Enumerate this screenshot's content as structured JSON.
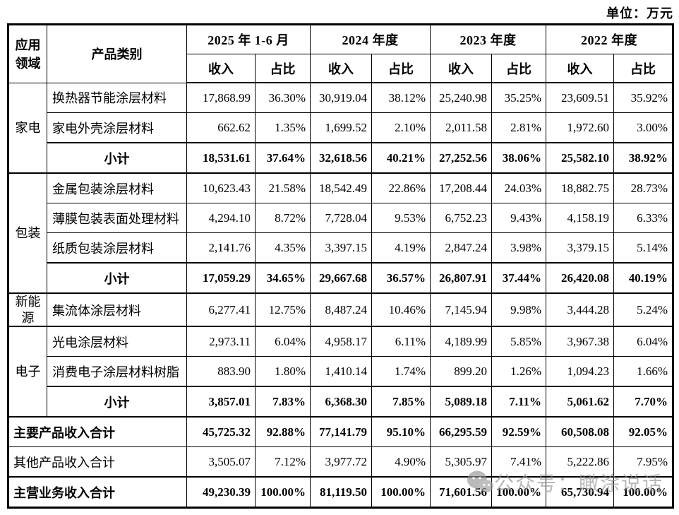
{
  "unit_label": "单位：万元",
  "header": {
    "area": "应用领域",
    "category": "产品类别",
    "periods": [
      "2025 年 1-6 月",
      "2024 年度",
      "2023 年度",
      "2022 年度"
    ],
    "revenue": "收入",
    "share": "占比"
  },
  "sections": [
    {
      "area": "家电",
      "rows": [
        {
          "label": "换热器节能涂层材料",
          "subtotal": false,
          "values": [
            "17,868.99",
            "36.30%",
            "30,919.04",
            "38.12%",
            "25,240.98",
            "35.25%",
            "23,609.51",
            "35.92%"
          ]
        },
        {
          "label": "家电外壳涂层材料",
          "subtotal": false,
          "values": [
            "662.62",
            "1.35%",
            "1,699.52",
            "2.10%",
            "2,011.58",
            "2.81%",
            "1,972.60",
            "3.00%"
          ]
        },
        {
          "label": "小计",
          "subtotal": true,
          "values": [
            "18,531.61",
            "37.64%",
            "32,618.56",
            "40.21%",
            "27,252.56",
            "38.06%",
            "25,582.10",
            "38.92%"
          ]
        }
      ]
    },
    {
      "area": "包装",
      "rows": [
        {
          "label": "金属包装涂层材料",
          "subtotal": false,
          "values": [
            "10,623.43",
            "21.58%",
            "18,542.49",
            "22.86%",
            "17,208.44",
            "24.03%",
            "18,882.75",
            "28.73%"
          ]
        },
        {
          "label": "薄膜包装表面处理材料",
          "subtotal": false,
          "values": [
            "4,294.10",
            "8.72%",
            "7,728.04",
            "9.53%",
            "6,752.23",
            "9.43%",
            "4,158.19",
            "6.33%"
          ]
        },
        {
          "label": "纸质包装涂层材料",
          "subtotal": false,
          "values": [
            "2,141.76",
            "4.35%",
            "3,397.15",
            "4.19%",
            "2,847.24",
            "3.98%",
            "3,379.15",
            "5.14%"
          ]
        },
        {
          "label": "小计",
          "subtotal": true,
          "values": [
            "17,059.29",
            "34.65%",
            "29,667.68",
            "36.57%",
            "26,807.91",
            "37.44%",
            "26,420.08",
            "40.19%"
          ]
        }
      ]
    },
    {
      "area": "新能源",
      "rows": [
        {
          "label": "集流体涂层材料",
          "subtotal": false,
          "values": [
            "6,277.41",
            "12.75%",
            "8,487.24",
            "10.46%",
            "7,145.94",
            "9.98%",
            "3,444.28",
            "5.24%"
          ]
        }
      ]
    },
    {
      "area": "电子",
      "rows": [
        {
          "label": "光电涂层材料",
          "subtotal": false,
          "values": [
            "2,973.11",
            "6.04%",
            "4,958.17",
            "6.11%",
            "4,189.99",
            "5.85%",
            "3,967.38",
            "6.04%"
          ]
        },
        {
          "label": "消费电子涂层材料树脂",
          "subtotal": false,
          "values": [
            "883.90",
            "1.80%",
            "1,410.14",
            "1.74%",
            "899.20",
            "1.26%",
            "1,094.23",
            "1.66%"
          ]
        },
        {
          "label": "小计",
          "subtotal": true,
          "values": [
            "3,857.01",
            "7.83%",
            "6,368.30",
            "7.85%",
            "5,089.18",
            "7.11%",
            "5,061.62",
            "7.70%"
          ]
        }
      ]
    }
  ],
  "totals": [
    {
      "label": "主要产品收入合计",
      "bold": true,
      "values": [
        "45,725.32",
        "92.88%",
        "77,141.79",
        "95.10%",
        "66,295.59",
        "92.59%",
        "60,508.08",
        "92.05%"
      ]
    },
    {
      "label": "其他产品收入合计",
      "bold": false,
      "values": [
        "3,505.07",
        "7.12%",
        "3,977.72",
        "4.90%",
        "5,305.97",
        "7.41%",
        "5,222.86",
        "7.95%"
      ]
    },
    {
      "label": "主营业务收入合计",
      "bold": true,
      "values": [
        "49,230.39",
        "100.00%",
        "81,119.50",
        "100.00%",
        "71,601.56",
        "100.00%",
        "65,730.94",
        "100.00%"
      ]
    }
  ],
  "watermark": {
    "icon": "wechat-icon",
    "text": "公众号：瞰涂说话",
    "color": "#8f8f8f"
  }
}
